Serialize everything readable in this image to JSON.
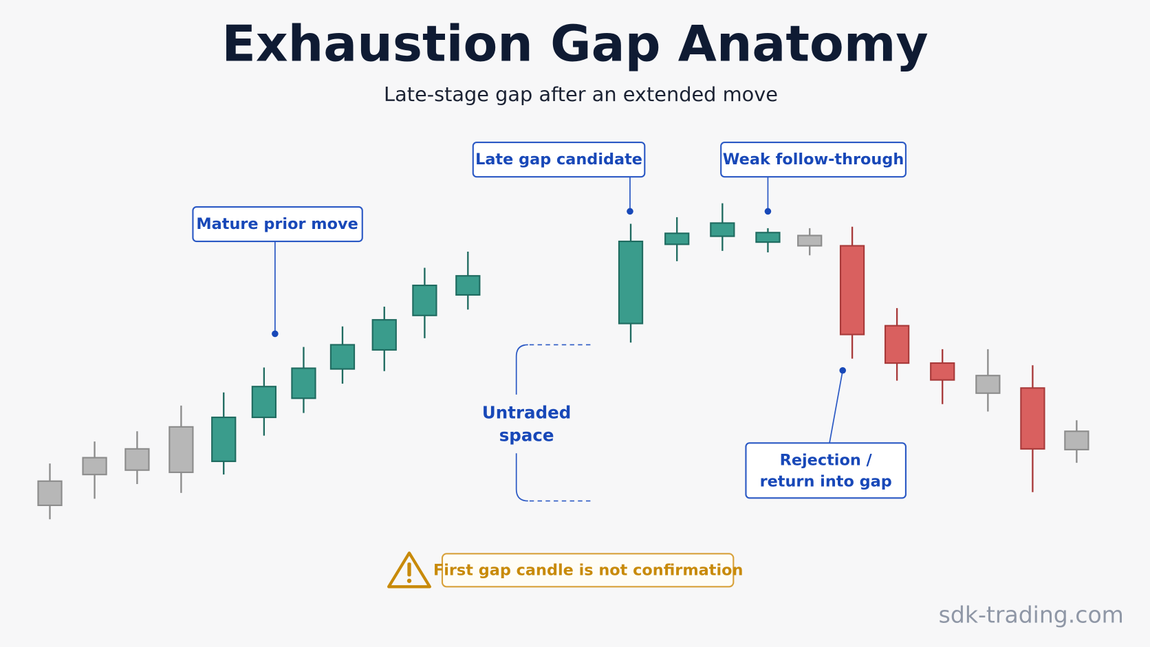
{
  "header": {
    "title": "Exhaustion Gap Anatomy",
    "subtitle": "Late-stage gap after an extended move"
  },
  "annotations": {
    "mature": "Mature prior move",
    "late_gap": "Late gap candidate",
    "weak": "Weak follow-through",
    "untraded": [
      "Untraded",
      "space"
    ],
    "rejection": [
      "Rejection /",
      "return into gap"
    ]
  },
  "warning": "First gap candle is not confirmation",
  "watermark": "sdk-trading.com"
}
